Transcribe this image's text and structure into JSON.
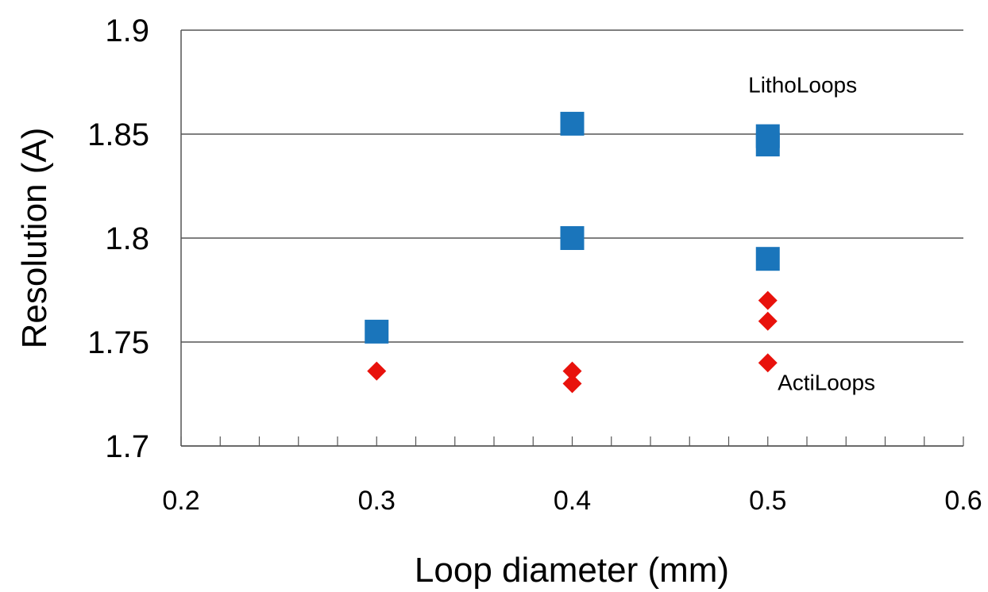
{
  "chart_data": {
    "type": "scatter",
    "xlabel": "Loop diameter (mm)",
    "ylabel": "Resolution (A)",
    "xlim": [
      0.2,
      0.6
    ],
    "ylim": [
      1.7,
      1.9
    ],
    "x_ticks": [
      "0.2",
      "0.3",
      "0.4",
      "0.5",
      "0.6"
    ],
    "y_ticks": [
      "1.7",
      "1.75",
      "1.8",
      "1.85",
      "1.9"
    ],
    "grid": "horizontal",
    "series": [
      {
        "name": "LithoLoops",
        "marker": "square",
        "color": "#1a75bb",
        "points": [
          {
            "x": 0.3,
            "y": 1.755
          },
          {
            "x": 0.4,
            "y": 1.855
          },
          {
            "x": 0.4,
            "y": 1.8
          },
          {
            "x": 0.5,
            "y": 1.849
          },
          {
            "x": 0.5,
            "y": 1.845
          },
          {
            "x": 0.5,
            "y": 1.79
          }
        ]
      },
      {
        "name": "ActiLoops",
        "marker": "diamond",
        "color": "#e8120c",
        "points": [
          {
            "x": 0.3,
            "y": 1.736
          },
          {
            "x": 0.4,
            "y": 1.736
          },
          {
            "x": 0.4,
            "y": 1.73
          },
          {
            "x": 0.5,
            "y": 1.77
          },
          {
            "x": 0.5,
            "y": 1.76
          },
          {
            "x": 0.5,
            "y": 1.74
          }
        ]
      }
    ],
    "annotations": [
      {
        "text": "LithoLoops",
        "x": 0.49,
        "y": 1.87
      },
      {
        "text": "ActiLoops",
        "x": 0.505,
        "y": 1.727
      }
    ]
  }
}
